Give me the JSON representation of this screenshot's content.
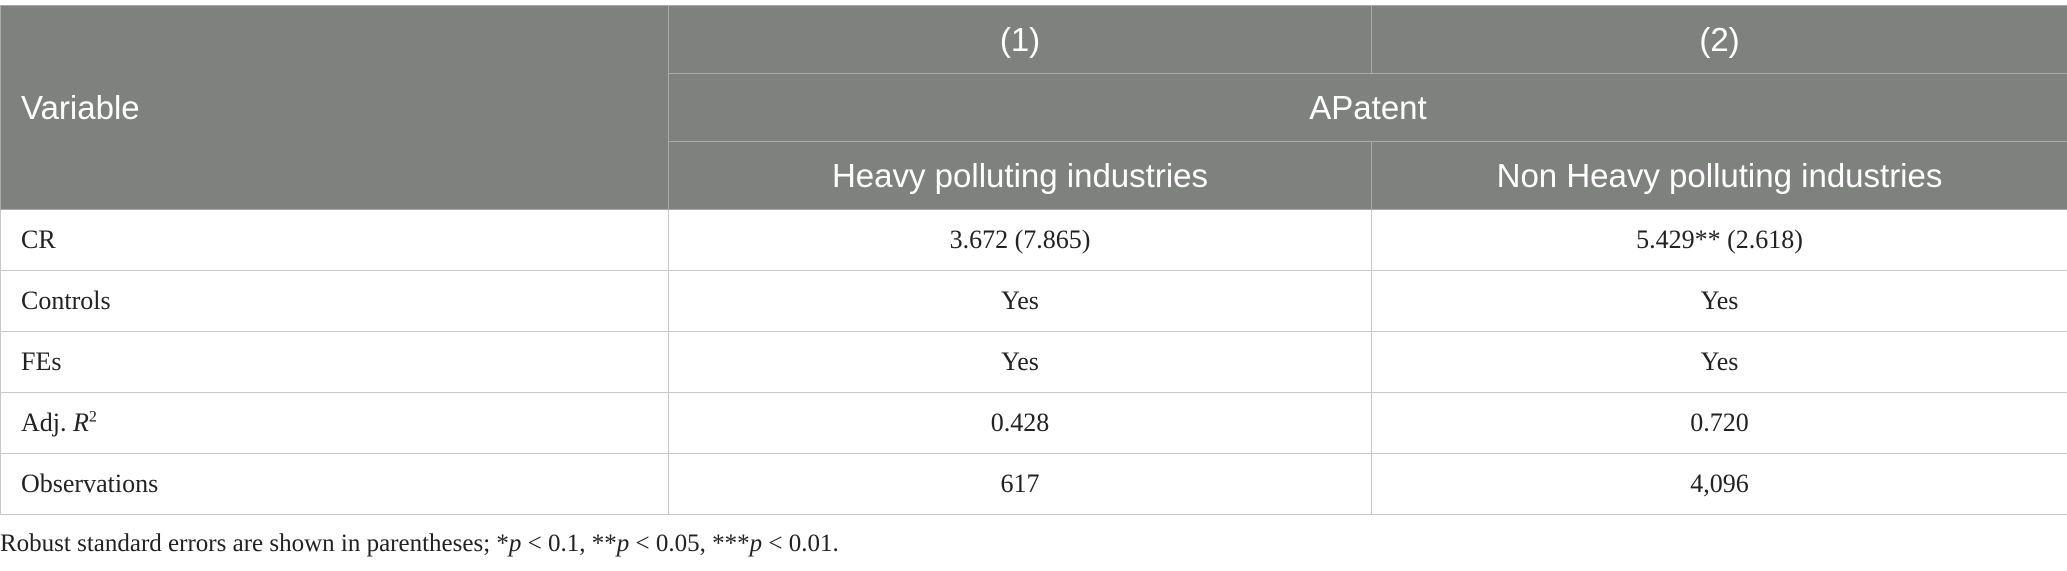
{
  "table": {
    "header": {
      "variable": "Variable",
      "columns": [
        "(1)",
        "(2)"
      ],
      "dependent": "APatent",
      "groups": [
        "Heavy polluting industries",
        "Non Heavy polluting industries"
      ]
    },
    "rows": [
      {
        "label": [
          "CR"
        ],
        "cells": [
          "3.672 (7.865)",
          "5.429** (2.618)"
        ]
      },
      {
        "label": [
          "Controls"
        ],
        "cells": [
          "Yes",
          "Yes"
        ]
      },
      {
        "label": [
          "FEs"
        ],
        "cells": [
          "Yes",
          "Yes"
        ]
      },
      {
        "label": [
          "Adj. ",
          "R",
          "2"
        ],
        "cells": [
          "0.428",
          "0.720"
        ]
      },
      {
        "label": [
          "Observations"
        ],
        "cells": [
          "617",
          "4,096"
        ]
      }
    ]
  },
  "footnote": [
    "Robust standard errors are shown in parentheses; *",
    "p",
    " < 0.1, **",
    "p",
    " < 0.05, ***",
    "p",
    " < 0.01."
  ]
}
